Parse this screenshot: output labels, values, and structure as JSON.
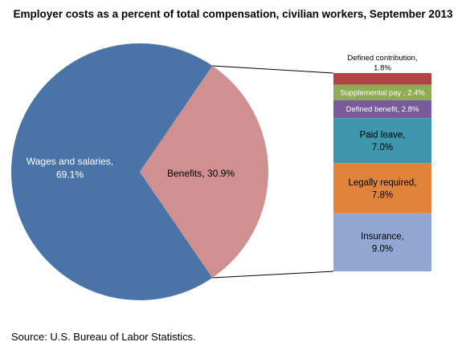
{
  "chart_data": {
    "type": "pie",
    "title": "Employer costs as a percent of total compensation, civilian workers, September 2013",
    "source": "Source: U.S. Bureau of Labor Statistics.",
    "slices": [
      {
        "lines": [
          "Wages and salaries,",
          "69.1%"
        ],
        "value": 69.1,
        "color": "#4a74a8"
      },
      {
        "lines": [
          "Benefits, 30.9%"
        ],
        "value": 30.9,
        "color": "#d09090"
      }
    ],
    "breakdown": {
      "of": "Benefits",
      "segments": [
        {
          "lines": [
            "Defined contribution,",
            "1.8%"
          ],
          "value": 1.8,
          "color": "#b04444",
          "label_outside": true
        },
        {
          "lines": [
            "Supplemental pay , 2.4%"
          ],
          "value": 2.4,
          "color": "#8fac55",
          "label_color": "#ffffff"
        },
        {
          "lines": [
            "Defined benefit, 2.8%"
          ],
          "value": 2.8,
          "color": "#795a9a",
          "label_color": "#ffffff"
        },
        {
          "lines": [
            "Paid leave,",
            "7.0%"
          ],
          "value": 7.0,
          "color": "#3e97ad",
          "label_color": "#000000"
        },
        {
          "lines": [
            "Legally required,",
            "7.8%"
          ],
          "value": 7.8,
          "color": "#e0843c",
          "label_color": "#000000"
        },
        {
          "lines": [
            "Insurance,",
            "9.0%"
          ],
          "value": 9.0,
          "color": "#92a8d2",
          "label_color": "#000000"
        }
      ]
    }
  }
}
